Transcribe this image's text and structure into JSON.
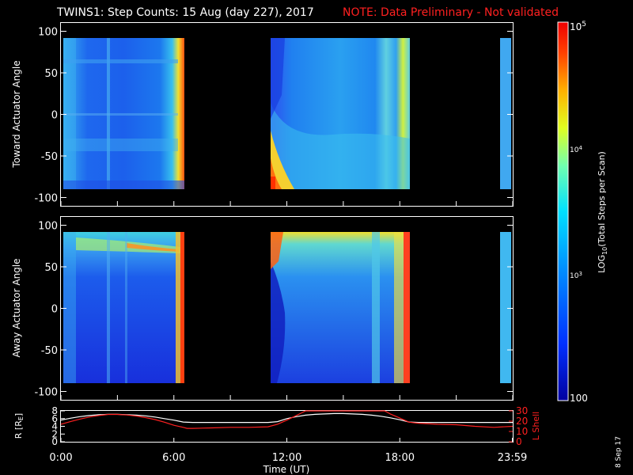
{
  "header": {
    "title": "TWINS1: Step Counts: 15 Aug (day 227), 2017",
    "note": "NOTE: Data Preliminary - Not validated",
    "note_color": "#ff2020"
  },
  "footer": {
    "date_stamp": "8 Sep 17"
  },
  "chart_data": [
    {
      "type": "heatmap",
      "id": "toward",
      "ylabel": "Toward Actuator Angle",
      "ylim": [
        -110,
        110
      ],
      "yticks": [
        -100,
        -50,
        0,
        50,
        100
      ],
      "xlim_hours": [
        0,
        24
      ],
      "data_angle_range": [
        -88,
        90
      ],
      "data_segments_hours": [
        [
          0.35,
          6.65
        ],
        [
          11.45,
          18.75
        ],
        [
          23.4,
          24
        ]
      ],
      "color_scale": "log",
      "grid": false
    },
    {
      "type": "heatmap",
      "id": "away",
      "ylabel": "Away Actuator Angle",
      "ylim": [
        -110,
        110
      ],
      "yticks": [
        -100,
        -50,
        0,
        50,
        100
      ],
      "xlim_hours": [
        0,
        24
      ],
      "data_angle_range": [
        -88,
        90
      ],
      "data_segments_hours": [
        [
          0.35,
          6.65
        ],
        [
          11.45,
          18.75
        ],
        [
          23.4,
          24
        ]
      ],
      "color_scale": "log",
      "grid": false
    },
    {
      "type": "line",
      "id": "orbit",
      "xlabel": "Time (UT)",
      "xticks": [
        "0:00",
        "6:00",
        "12:00",
        "18:00",
        "23:59"
      ],
      "xtick_hours": [
        0,
        6,
        12,
        18,
        23.98
      ],
      "ylabel_left": "R [R",
      "ylabel_left_sub": "E",
      "ylabel_left_end": "]",
      "ylim_left": [
        0,
        8
      ],
      "yticks_left": [
        0,
        2,
        4,
        6,
        8
      ],
      "ylabel_right": "L Shell",
      "ylim_right": [
        0,
        30
      ],
      "yticks_right": [
        0,
        10,
        20,
        30
      ],
      "right_axis_color": "#ff2020",
      "series": [
        {
          "axis": "left",
          "color": "#ffffff",
          "x": [
            0,
            0.5,
            1,
            1.5,
            2,
            2.5,
            3,
            3.5,
            4,
            4.5,
            5,
            5.5,
            6,
            6.5,
            7,
            8,
            9,
            10,
            11,
            11.5,
            12,
            12.5,
            13,
            13.5,
            14,
            14.5,
            15,
            15.5,
            16,
            16.5,
            17,
            17.5,
            18,
            18.5,
            19,
            20,
            21,
            22,
            23,
            24
          ],
          "y": [
            5.6,
            6.1,
            6.5,
            6.8,
            7.0,
            7.1,
            7.1,
            7.0,
            6.9,
            6.7,
            6.4,
            6.0,
            5.6,
            5.1,
            5.0,
            5.0,
            5.0,
            5.0,
            5.0,
            5.2,
            6.0,
            6.5,
            6.9,
            7.1,
            7.2,
            7.3,
            7.3,
            7.2,
            7.1,
            6.9,
            6.6,
            6.2,
            5.7,
            5.1,
            5.0,
            5.0,
            5.0,
            5.0,
            5.0,
            5.0
          ]
        },
        {
          "axis": "right",
          "color": "#ff2020",
          "x": [
            0,
            0.5,
            1,
            1.5,
            2,
            2.5,
            3,
            3.5,
            4,
            4.5,
            5,
            5.5,
            6,
            6.5,
            6.7,
            7,
            8,
            9,
            10,
            11,
            11.5,
            12,
            12.5,
            13,
            13.2,
            17.2,
            17.5,
            18,
            18.5,
            19,
            20,
            21,
            22,
            23,
            24
          ],
          "y": [
            17,
            19.5,
            22,
            24,
            25.5,
            26.5,
            26.5,
            26,
            25,
            23.5,
            21.5,
            19,
            16,
            14,
            13,
            13,
            13.5,
            14,
            14,
            14.5,
            17,
            21,
            25.5,
            30,
            31,
            31,
            27,
            23,
            19,
            18,
            17,
            16.5,
            15,
            14,
            15
          ]
        }
      ]
    }
  ],
  "colorbar": {
    "label_prefix": "LOG",
    "label_sub": "10",
    "label_rest": "(Total Steps per Scan)",
    "ticks": [
      {
        "base": "10",
        "exp": "5"
      },
      {
        "base": "10",
        "exp": "4"
      },
      {
        "base": "10",
        "exp": "3"
      },
      {
        "text": "100"
      }
    ],
    "tick_values": [
      100000,
      10000,
      1000,
      100
    ],
    "range": [
      100,
      100000
    ],
    "scale": "log"
  }
}
